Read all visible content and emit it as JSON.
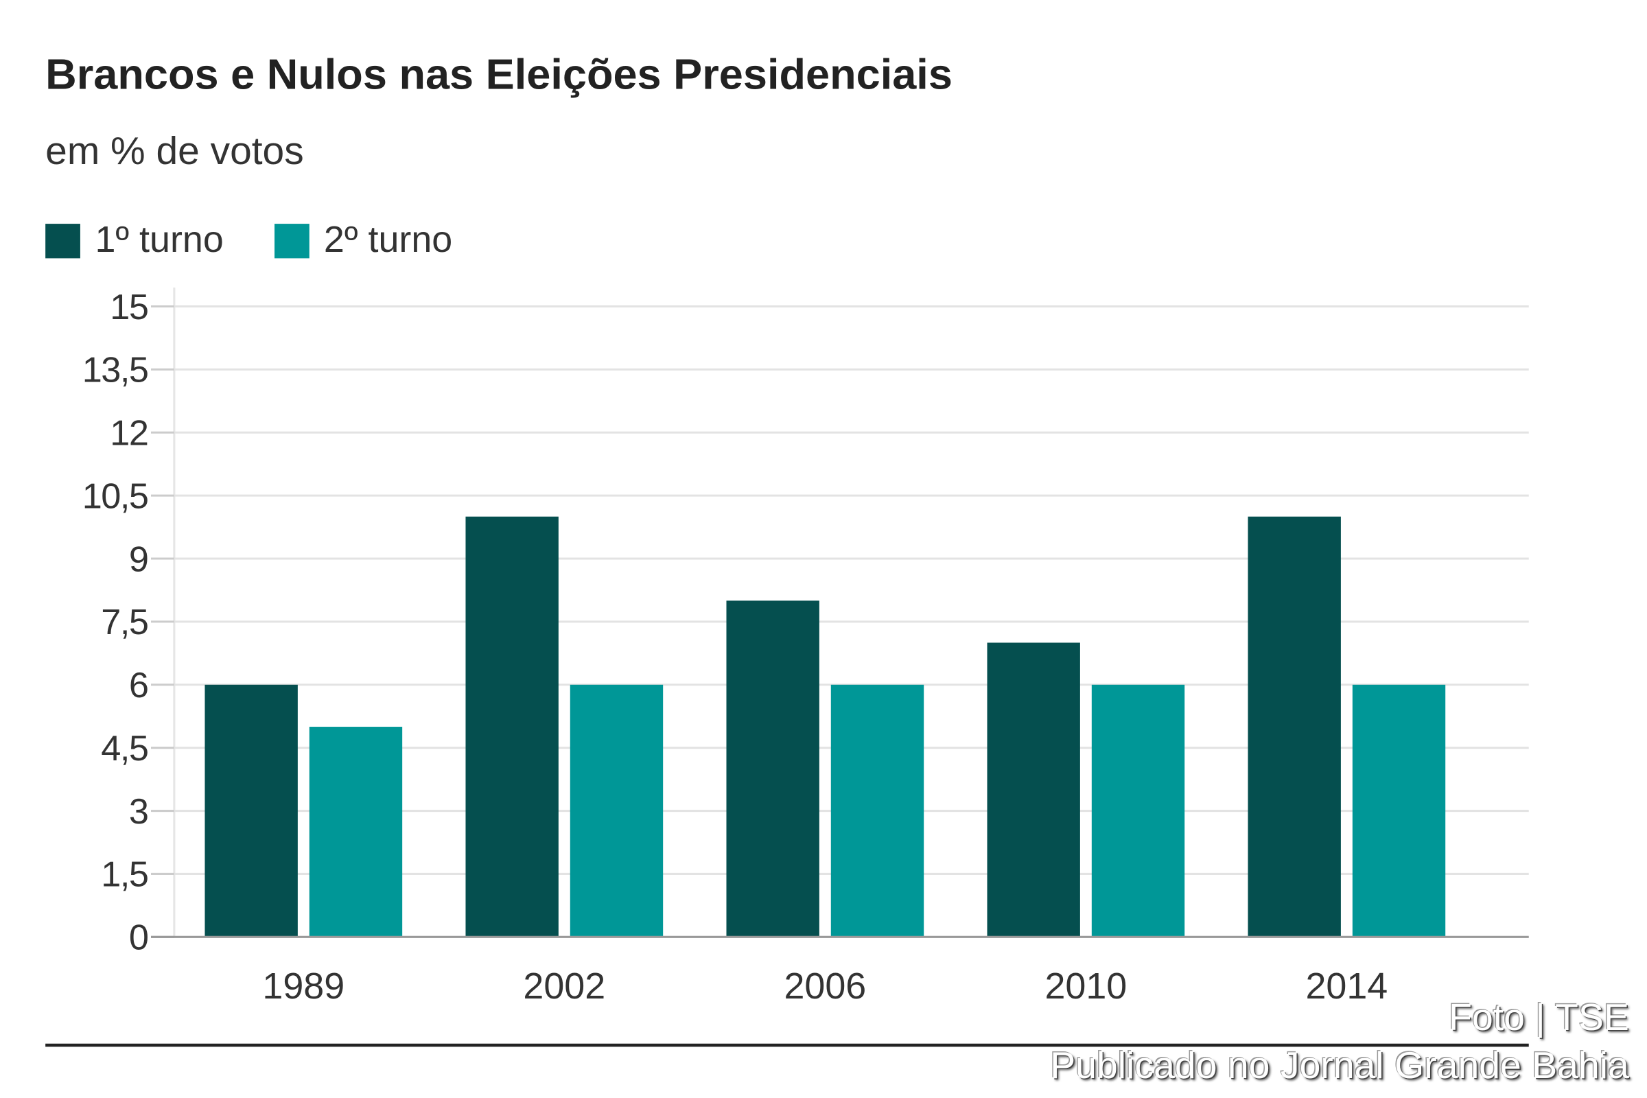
{
  "chart_data": {
    "type": "bar",
    "title": "Brancos e Nulos nas Eleições Presidenciais",
    "subtitle": "em % de votos",
    "categories": [
      "1989",
      "2002",
      "2006",
      "2010",
      "2014"
    ],
    "series": [
      {
        "name": "1º turno",
        "color": "#054f4f",
        "values": [
          6,
          10,
          8,
          7,
          10
        ]
      },
      {
        "name": "2º turno",
        "color": "#009797",
        "values": [
          5,
          6,
          6,
          6,
          6
        ]
      }
    ],
    "ylim": [
      0,
      15
    ],
    "yticks": [
      "0",
      "1,5",
      "3",
      "4,5",
      "6",
      "7,5",
      "9",
      "10,5",
      "12",
      "13,5",
      "15"
    ],
    "ytick_values": [
      0,
      1.5,
      3,
      4.5,
      6,
      7.5,
      9,
      10.5,
      12,
      13.5,
      15
    ],
    "grid": true,
    "legend_position": "top-left"
  },
  "footer": {
    "credit": "Foto | TSE",
    "publisher": "Publicado no Jornal Grande Bahia"
  }
}
